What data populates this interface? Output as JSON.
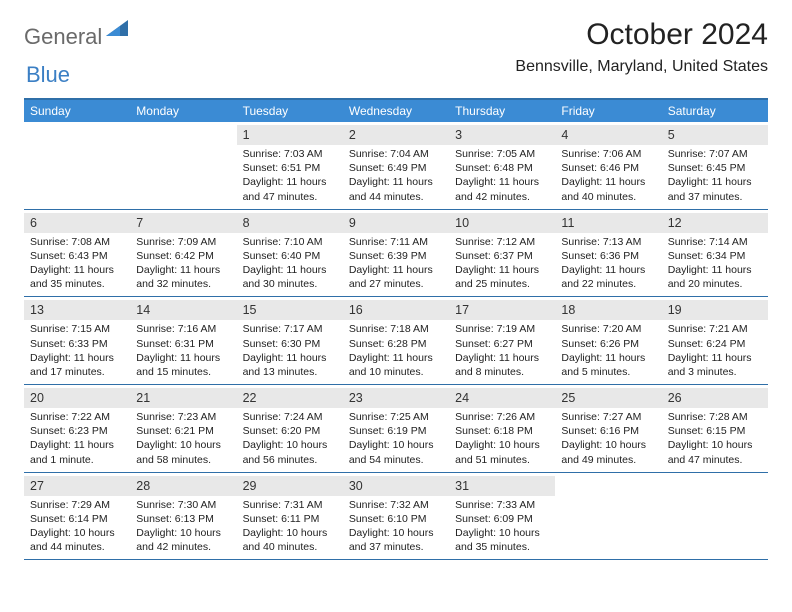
{
  "logo": {
    "part1": "General",
    "part2": "Blue"
  },
  "title": "October 2024",
  "location": "Bennsville, Maryland, United States",
  "colors": {
    "header_bg": "#3b8bd4",
    "border": "#2f6fa8",
    "daynum_bg": "#e8e8e8",
    "logo_gray": "#6a6a6a",
    "logo_blue": "#3b7fc4"
  },
  "day_headers": [
    "Sunday",
    "Monday",
    "Tuesday",
    "Wednesday",
    "Thursday",
    "Friday",
    "Saturday"
  ],
  "weeks": [
    [
      null,
      null,
      {
        "n": "1",
        "sunrise": "Sunrise: 7:03 AM",
        "sunset": "Sunset: 6:51 PM",
        "daylight1": "Daylight: 11 hours",
        "daylight2": "and 47 minutes."
      },
      {
        "n": "2",
        "sunrise": "Sunrise: 7:04 AM",
        "sunset": "Sunset: 6:49 PM",
        "daylight1": "Daylight: 11 hours",
        "daylight2": "and 44 minutes."
      },
      {
        "n": "3",
        "sunrise": "Sunrise: 7:05 AM",
        "sunset": "Sunset: 6:48 PM",
        "daylight1": "Daylight: 11 hours",
        "daylight2": "and 42 minutes."
      },
      {
        "n": "4",
        "sunrise": "Sunrise: 7:06 AM",
        "sunset": "Sunset: 6:46 PM",
        "daylight1": "Daylight: 11 hours",
        "daylight2": "and 40 minutes."
      },
      {
        "n": "5",
        "sunrise": "Sunrise: 7:07 AM",
        "sunset": "Sunset: 6:45 PM",
        "daylight1": "Daylight: 11 hours",
        "daylight2": "and 37 minutes."
      }
    ],
    [
      {
        "n": "6",
        "sunrise": "Sunrise: 7:08 AM",
        "sunset": "Sunset: 6:43 PM",
        "daylight1": "Daylight: 11 hours",
        "daylight2": "and 35 minutes."
      },
      {
        "n": "7",
        "sunrise": "Sunrise: 7:09 AM",
        "sunset": "Sunset: 6:42 PM",
        "daylight1": "Daylight: 11 hours",
        "daylight2": "and 32 minutes."
      },
      {
        "n": "8",
        "sunrise": "Sunrise: 7:10 AM",
        "sunset": "Sunset: 6:40 PM",
        "daylight1": "Daylight: 11 hours",
        "daylight2": "and 30 minutes."
      },
      {
        "n": "9",
        "sunrise": "Sunrise: 7:11 AM",
        "sunset": "Sunset: 6:39 PM",
        "daylight1": "Daylight: 11 hours",
        "daylight2": "and 27 minutes."
      },
      {
        "n": "10",
        "sunrise": "Sunrise: 7:12 AM",
        "sunset": "Sunset: 6:37 PM",
        "daylight1": "Daylight: 11 hours",
        "daylight2": "and 25 minutes."
      },
      {
        "n": "11",
        "sunrise": "Sunrise: 7:13 AM",
        "sunset": "Sunset: 6:36 PM",
        "daylight1": "Daylight: 11 hours",
        "daylight2": "and 22 minutes."
      },
      {
        "n": "12",
        "sunrise": "Sunrise: 7:14 AM",
        "sunset": "Sunset: 6:34 PM",
        "daylight1": "Daylight: 11 hours",
        "daylight2": "and 20 minutes."
      }
    ],
    [
      {
        "n": "13",
        "sunrise": "Sunrise: 7:15 AM",
        "sunset": "Sunset: 6:33 PM",
        "daylight1": "Daylight: 11 hours",
        "daylight2": "and 17 minutes."
      },
      {
        "n": "14",
        "sunrise": "Sunrise: 7:16 AM",
        "sunset": "Sunset: 6:31 PM",
        "daylight1": "Daylight: 11 hours",
        "daylight2": "and 15 minutes."
      },
      {
        "n": "15",
        "sunrise": "Sunrise: 7:17 AM",
        "sunset": "Sunset: 6:30 PM",
        "daylight1": "Daylight: 11 hours",
        "daylight2": "and 13 minutes."
      },
      {
        "n": "16",
        "sunrise": "Sunrise: 7:18 AM",
        "sunset": "Sunset: 6:28 PM",
        "daylight1": "Daylight: 11 hours",
        "daylight2": "and 10 minutes."
      },
      {
        "n": "17",
        "sunrise": "Sunrise: 7:19 AM",
        "sunset": "Sunset: 6:27 PM",
        "daylight1": "Daylight: 11 hours",
        "daylight2": "and 8 minutes."
      },
      {
        "n": "18",
        "sunrise": "Sunrise: 7:20 AM",
        "sunset": "Sunset: 6:26 PM",
        "daylight1": "Daylight: 11 hours",
        "daylight2": "and 5 minutes."
      },
      {
        "n": "19",
        "sunrise": "Sunrise: 7:21 AM",
        "sunset": "Sunset: 6:24 PM",
        "daylight1": "Daylight: 11 hours",
        "daylight2": "and 3 minutes."
      }
    ],
    [
      {
        "n": "20",
        "sunrise": "Sunrise: 7:22 AM",
        "sunset": "Sunset: 6:23 PM",
        "daylight1": "Daylight: 11 hours",
        "daylight2": "and 1 minute."
      },
      {
        "n": "21",
        "sunrise": "Sunrise: 7:23 AM",
        "sunset": "Sunset: 6:21 PM",
        "daylight1": "Daylight: 10 hours",
        "daylight2": "and 58 minutes."
      },
      {
        "n": "22",
        "sunrise": "Sunrise: 7:24 AM",
        "sunset": "Sunset: 6:20 PM",
        "daylight1": "Daylight: 10 hours",
        "daylight2": "and 56 minutes."
      },
      {
        "n": "23",
        "sunrise": "Sunrise: 7:25 AM",
        "sunset": "Sunset: 6:19 PM",
        "daylight1": "Daylight: 10 hours",
        "daylight2": "and 54 minutes."
      },
      {
        "n": "24",
        "sunrise": "Sunrise: 7:26 AM",
        "sunset": "Sunset: 6:18 PM",
        "daylight1": "Daylight: 10 hours",
        "daylight2": "and 51 minutes."
      },
      {
        "n": "25",
        "sunrise": "Sunrise: 7:27 AM",
        "sunset": "Sunset: 6:16 PM",
        "daylight1": "Daylight: 10 hours",
        "daylight2": "and 49 minutes."
      },
      {
        "n": "26",
        "sunrise": "Sunrise: 7:28 AM",
        "sunset": "Sunset: 6:15 PM",
        "daylight1": "Daylight: 10 hours",
        "daylight2": "and 47 minutes."
      }
    ],
    [
      {
        "n": "27",
        "sunrise": "Sunrise: 7:29 AM",
        "sunset": "Sunset: 6:14 PM",
        "daylight1": "Daylight: 10 hours",
        "daylight2": "and 44 minutes."
      },
      {
        "n": "28",
        "sunrise": "Sunrise: 7:30 AM",
        "sunset": "Sunset: 6:13 PM",
        "daylight1": "Daylight: 10 hours",
        "daylight2": "and 42 minutes."
      },
      {
        "n": "29",
        "sunrise": "Sunrise: 7:31 AM",
        "sunset": "Sunset: 6:11 PM",
        "daylight1": "Daylight: 10 hours",
        "daylight2": "and 40 minutes."
      },
      {
        "n": "30",
        "sunrise": "Sunrise: 7:32 AM",
        "sunset": "Sunset: 6:10 PM",
        "daylight1": "Daylight: 10 hours",
        "daylight2": "and 37 minutes."
      },
      {
        "n": "31",
        "sunrise": "Sunrise: 7:33 AM",
        "sunset": "Sunset: 6:09 PM",
        "daylight1": "Daylight: 10 hours",
        "daylight2": "and 35 minutes."
      },
      null,
      null
    ]
  ]
}
